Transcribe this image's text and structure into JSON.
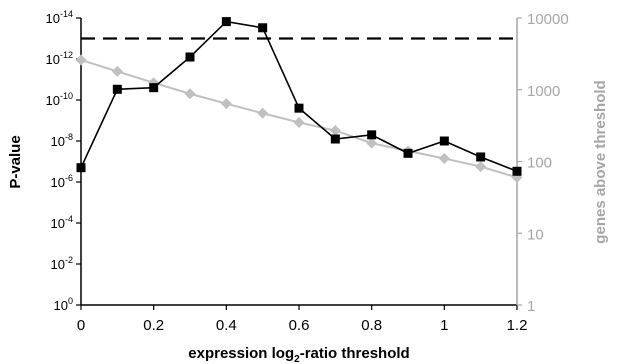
{
  "chart_data": {
    "type": "line",
    "xlabel_pre": "expression log",
    "xlabel_sub": "2",
    "xlabel_post": "-ratio threshold",
    "ylabel_left": "P-value",
    "ylabel_right": "genes above threshold",
    "x_ticks": [
      "0",
      "0.2",
      "0.4",
      "0.6",
      "0.8",
      "1",
      "1.2"
    ],
    "x_tick_values": [
      0,
      0.2,
      0.4,
      0.6,
      0.8,
      1.0,
      1.2
    ],
    "xlim": [
      0,
      1.2
    ],
    "left_ticks": [
      {
        "base": "10",
        "exp": "0",
        "value": 1
      },
      {
        "base": "10",
        "exp": "-2",
        "value": 0.01
      },
      {
        "base": "10",
        "exp": "-4",
        "value": 0.0001
      },
      {
        "base": "10",
        "exp": "-6",
        "value": 1e-06
      },
      {
        "base": "10",
        "exp": "-8",
        "value": 1e-08
      },
      {
        "base": "10",
        "exp": "-10",
        "value": 1e-10
      },
      {
        "base": "10",
        "exp": "-12",
        "value": 1e-12
      },
      {
        "base": "10",
        "exp": "-14",
        "value": 1e-14
      }
    ],
    "left_ylim": [
      1,
      1e-14
    ],
    "left_scale": "log-reversed",
    "right_ticks": [
      "1",
      "10",
      "100",
      "1000",
      "10000"
    ],
    "right_tick_values": [
      1,
      10,
      100,
      1000,
      10000
    ],
    "right_ylim": [
      1,
      10000
    ],
    "right_scale": "log",
    "grid": false,
    "threshold_line": {
      "axis": "left",
      "value": 1e-13,
      "style": "dashed",
      "color": "#000000"
    },
    "series": [
      {
        "axis": "left",
        "color": "#000000",
        "marker": "square",
        "x": [
          0,
          0.1,
          0.2,
          0.3,
          0.4,
          0.5,
          0.6,
          0.7,
          0.8,
          0.9,
          1.0,
          1.1,
          1.2
        ],
        "values": [
          2e-07,
          3e-11,
          2.5e-11,
          8e-13,
          1.5e-14,
          3e-14,
          2.5e-10,
          8e-09,
          5e-09,
          4e-08,
          1e-08,
          6e-08,
          3e-07
        ]
      },
      {
        "axis": "right",
        "color": "#c0c0c0",
        "marker": "diamond",
        "x": [
          0,
          0.1,
          0.2,
          0.3,
          0.4,
          0.5,
          0.6,
          0.7,
          0.8,
          0.9,
          1.0,
          1.1,
          1.2
        ],
        "values": [
          2600,
          1800,
          1250,
          880,
          640,
          470,
          350,
          270,
          180,
          140,
          110,
          85,
          60
        ]
      }
    ]
  }
}
